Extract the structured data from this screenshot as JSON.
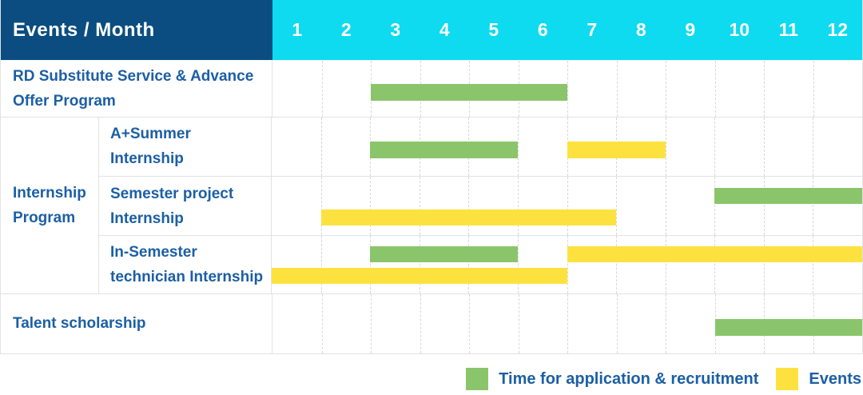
{
  "header": {
    "label": "Events / Month",
    "months": [
      "1",
      "2",
      "3",
      "4",
      "5",
      "6",
      "7",
      "8",
      "9",
      "10",
      "11",
      "12"
    ]
  },
  "colors": {
    "header_bg": "#0B4D80",
    "months_bg": "#0EDAF0",
    "green": "#8BC56B",
    "yellow": "#FDE23F",
    "label_text": "#1C5FA5",
    "header_text": "#FFFFFF",
    "grid": "#E2E2E2"
  },
  "rows": [
    {
      "id": "rd",
      "label": "RD Substitute Service & Advance Offer Program"
    },
    {
      "id": "a_summer",
      "label": "A+Summer Internship"
    },
    {
      "id": "semester",
      "label": "Semester project Internship"
    },
    {
      "id": "in_semester",
      "label": "In-Semester technician Internship"
    },
    {
      "id": "talent",
      "label": "Talent scholarship"
    }
  ],
  "group": {
    "label": "Internship Program",
    "children": [
      "a_summer",
      "semester",
      "in_semester"
    ]
  },
  "legend": [
    {
      "key": "green",
      "color": "#8BC56B",
      "label": "Time for application & recruitment"
    },
    {
      "key": "yellow",
      "color": "#FDE23F",
      "label": "Events"
    }
  ],
  "chart_data": {
    "type": "gantt",
    "title": "Events / Month",
    "x_axis": {
      "label": "Month",
      "ticks": [
        1,
        2,
        3,
        4,
        5,
        6,
        7,
        8,
        9,
        10,
        11,
        12
      ],
      "range": [
        1,
        12
      ]
    },
    "series": [
      {
        "name": "Time for application & recruitment",
        "color": "#8BC56B"
      },
      {
        "name": "Events",
        "color": "#FDE23F"
      }
    ],
    "tasks": [
      {
        "row_id": "rd",
        "row": "RD Substitute Service & Advance Offer Program",
        "series": "Time for application & recruitment",
        "color": "green",
        "start_month": 3,
        "end_month": 6,
        "lane": "single"
      },
      {
        "row_id": "a_summer",
        "row": "A+Summer Internship",
        "series": "Time for application & recruitment",
        "color": "green",
        "start_month": 3,
        "end_month": 5,
        "lane": "single"
      },
      {
        "row_id": "a_summer",
        "row": "A+Summer Internship",
        "series": "Events",
        "color": "yellow",
        "start_month": 7,
        "end_month": 8,
        "lane": "single"
      },
      {
        "row_id": "semester",
        "row": "Semester project Internship",
        "series": "Time for application & recruitment",
        "color": "green",
        "start_month": 10,
        "end_month": 12,
        "lane": "top"
      },
      {
        "row_id": "semester",
        "row": "Semester project Internship",
        "series": "Events",
        "color": "yellow",
        "start_month": 2,
        "end_month": 7,
        "lane": "bottom"
      },
      {
        "row_id": "in_semester",
        "row": "In-Semester technician Internship",
        "series": "Time for application & recruitment",
        "color": "green",
        "start_month": 3,
        "end_month": 5,
        "lane": "top"
      },
      {
        "row_id": "in_semester",
        "row": "In-Semester technician Internship",
        "series": "Events",
        "color": "yellow",
        "start_month": 7,
        "end_month": 12,
        "lane": "top"
      },
      {
        "row_id": "in_semester",
        "row": "In-Semester technician Internship",
        "series": "Events",
        "color": "yellow",
        "start_month": 1,
        "end_month": 6,
        "lane": "bottom"
      },
      {
        "row_id": "talent",
        "row": "Talent scholarship",
        "series": "Time for application & recruitment",
        "color": "green",
        "start_month": 10,
        "end_month": 12,
        "lane": "single"
      }
    ]
  }
}
